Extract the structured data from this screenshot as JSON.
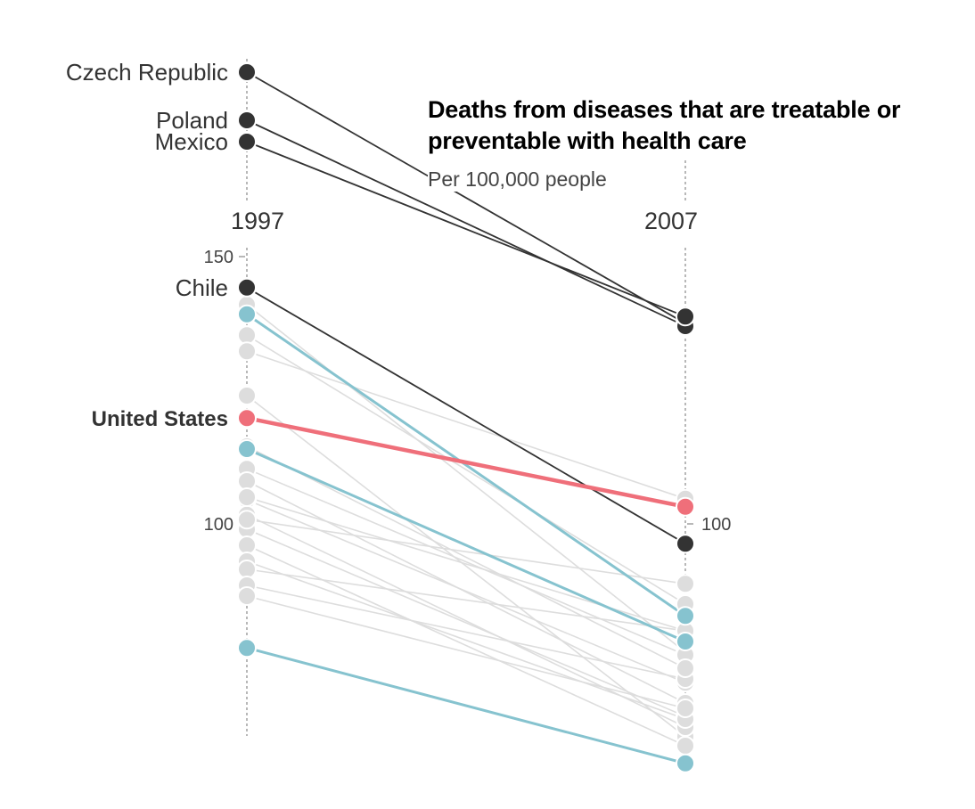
{
  "chart_data": {
    "type": "slope",
    "title": "Deaths from diseases that are treatable or preventable with health care",
    "subtitle": "Per 100,000 people",
    "x": [
      "1997",
      "2007"
    ],
    "ylim": [
      60,
      200
    ],
    "yticks": {
      "left": [
        150,
        100
      ],
      "right": [
        100
      ]
    },
    "colors": {
      "highlight": "#ef6f7a",
      "dark": "#333333",
      "teal": "#86c3cf",
      "gray": "#dddddd",
      "axis": "#888888"
    },
    "series": [
      {
        "name": "Czech Republic",
        "style": "dark",
        "values": [
          184.5,
          137.5
        ],
        "label_left": true
      },
      {
        "name": "Poland",
        "style": "dark",
        "values": [
          175.5,
          137.0
        ],
        "label_left": true
      },
      {
        "name": "Mexico",
        "style": "dark",
        "values": [
          171.5,
          138.8
        ],
        "label_left": true
      },
      {
        "name": "Chile",
        "style": "dark",
        "values": [
          144.2,
          96.3
        ],
        "label_left": true
      },
      {
        "name": "United States",
        "style": "highlight",
        "values": [
          119.8,
          103.2
        ],
        "label_left": true
      },
      {
        "style": "teal",
        "values": [
          139.2,
          82.8
        ]
      },
      {
        "style": "teal",
        "values": [
          114.0,
          78.0
        ]
      },
      {
        "style": "teal",
        "values": [
          76.8,
          55.2
        ]
      },
      {
        "style": "gray",
        "values": [
          141.0,
          76.0
        ]
      },
      {
        "style": "gray",
        "values": [
          135.3,
          85.0
        ]
      },
      {
        "style": "gray",
        "values": [
          132.3,
          104.7
        ]
      },
      {
        "style": "gray",
        "values": [
          124.0,
          60.2
        ]
      },
      {
        "style": "gray",
        "values": [
          110.3,
          75.5
        ]
      },
      {
        "style": "gray",
        "values": [
          108.0,
          66.5
        ]
      },
      {
        "style": "gray",
        "values": [
          104.5,
          70.3
        ]
      },
      {
        "style": "gray",
        "values": [
          101.7,
          62.0
        ]
      },
      {
        "style": "gray",
        "values": [
          99.0,
          64.0
        ]
      },
      {
        "style": "gray",
        "values": [
          96.0,
          58.5
        ]
      },
      {
        "style": "gray",
        "values": [
          93.0,
          63.5
        ]
      },
      {
        "style": "gray",
        "values": [
          91.5,
          80.0
        ]
      },
      {
        "style": "gray",
        "values": [
          88.5,
          71.0
        ]
      },
      {
        "style": "gray",
        "values": [
          86.5,
          65.5
        ]
      },
      {
        "style": "gray",
        "values": [
          100.8,
          88.8
        ]
      },
      {
        "style": "gray",
        "values": [
          114.5,
          73.0
        ]
      },
      {
        "style": "gray",
        "values": [
          105.0,
          80.0
        ]
      }
    ]
  }
}
